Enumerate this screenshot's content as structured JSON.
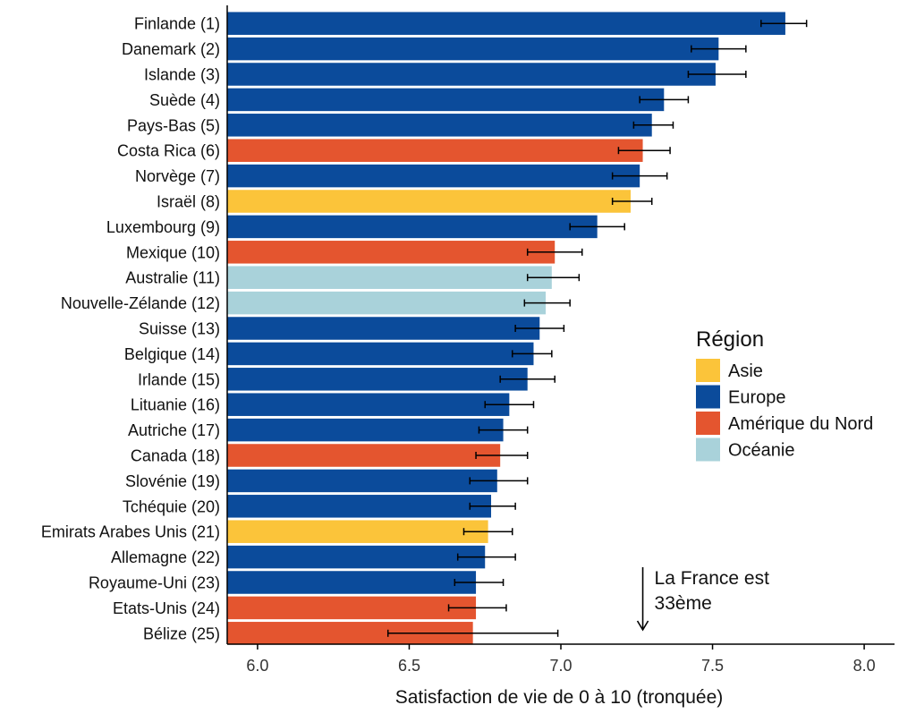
{
  "chart_data": {
    "type": "bar",
    "orientation": "horizontal",
    "xlabel": "Satisfaction de vie de 0 à 10 (tronquée)",
    "xlim": [
      5.9,
      8.1
    ],
    "xticks": [
      6.0,
      6.5,
      7.0,
      7.5,
      8.0
    ],
    "xtick_labels": [
      "6.0",
      "6.5",
      "7.0",
      "7.5",
      "8.0"
    ],
    "grid": false,
    "colors": {
      "Asie": "#fbc43a",
      "Europe": "#0b4b9b",
      "Amérique du Nord": "#e4552f",
      "Océanie": "#a9d2da"
    },
    "legend": {
      "title": "Région",
      "position": "right",
      "items": [
        "Asie",
        "Europe",
        "Amérique du Nord",
        "Océanie"
      ]
    },
    "annotation": {
      "lines": [
        "La France est",
        "33ème"
      ],
      "x": 7.27
    },
    "bars": [
      {
        "label": "Finlande (1)",
        "value": 7.74,
        "lo": 7.66,
        "hi": 7.81,
        "region": "Europe"
      },
      {
        "label": "Danemark (2)",
        "value": 7.52,
        "lo": 7.43,
        "hi": 7.61,
        "region": "Europe"
      },
      {
        "label": "Islande (3)",
        "value": 7.51,
        "lo": 7.42,
        "hi": 7.61,
        "region": "Europe"
      },
      {
        "label": "Suède (4)",
        "value": 7.34,
        "lo": 7.26,
        "hi": 7.42,
        "region": "Europe"
      },
      {
        "label": "Pays-Bas (5)",
        "value": 7.3,
        "lo": 7.24,
        "hi": 7.37,
        "region": "Europe"
      },
      {
        "label": "Costa Rica (6)",
        "value": 7.27,
        "lo": 7.19,
        "hi": 7.36,
        "region": "Amérique du Nord"
      },
      {
        "label": "Norvège (7)",
        "value": 7.26,
        "lo": 7.17,
        "hi": 7.35,
        "region": "Europe"
      },
      {
        "label": "Israël (8)",
        "value": 7.23,
        "lo": 7.17,
        "hi": 7.3,
        "region": "Asie"
      },
      {
        "label": "Luxembourg (9)",
        "value": 7.12,
        "lo": 7.03,
        "hi": 7.21,
        "region": "Europe"
      },
      {
        "label": "Mexique (10)",
        "value": 6.98,
        "lo": 6.89,
        "hi": 7.07,
        "region": "Amérique du Nord"
      },
      {
        "label": "Australie (11)",
        "value": 6.97,
        "lo": 6.89,
        "hi": 7.06,
        "region": "Océanie"
      },
      {
        "label": "Nouvelle-Zélande (12)",
        "value": 6.95,
        "lo": 6.88,
        "hi": 7.03,
        "region": "Océanie"
      },
      {
        "label": "Suisse (13)",
        "value": 6.93,
        "lo": 6.85,
        "hi": 7.01,
        "region": "Europe"
      },
      {
        "label": "Belgique (14)",
        "value": 6.91,
        "lo": 6.84,
        "hi": 6.97,
        "region": "Europe"
      },
      {
        "label": "Irlande (15)",
        "value": 6.89,
        "lo": 6.8,
        "hi": 6.98,
        "region": "Europe"
      },
      {
        "label": "Lituanie (16)",
        "value": 6.83,
        "lo": 6.75,
        "hi": 6.91,
        "region": "Europe"
      },
      {
        "label": "Autriche (17)",
        "value": 6.81,
        "lo": 6.73,
        "hi": 6.89,
        "region": "Europe"
      },
      {
        "label": "Canada (18)",
        "value": 6.8,
        "lo": 6.72,
        "hi": 6.89,
        "region": "Amérique du Nord"
      },
      {
        "label": "Slovénie (19)",
        "value": 6.79,
        "lo": 6.7,
        "hi": 6.89,
        "region": "Europe"
      },
      {
        "label": "Tchéquie (20)",
        "value": 6.77,
        "lo": 6.7,
        "hi": 6.85,
        "region": "Europe"
      },
      {
        "label": "Emirats Arabes Unis (21)",
        "value": 6.76,
        "lo": 6.68,
        "hi": 6.84,
        "region": "Asie"
      },
      {
        "label": "Allemagne (22)",
        "value": 6.75,
        "lo": 6.66,
        "hi": 6.85,
        "region": "Europe"
      },
      {
        "label": "Royaume-Uni (23)",
        "value": 6.72,
        "lo": 6.65,
        "hi": 6.81,
        "region": "Europe"
      },
      {
        "label": "Etats-Unis (24)",
        "value": 6.72,
        "lo": 6.63,
        "hi": 6.82,
        "region": "Amérique du Nord"
      },
      {
        "label": "Bélize (25)",
        "value": 6.71,
        "lo": 6.43,
        "hi": 6.99,
        "region": "Amérique du Nord"
      }
    ]
  }
}
